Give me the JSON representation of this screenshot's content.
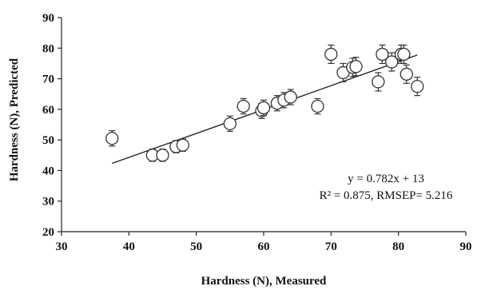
{
  "chart_data": {
    "type": "scatter",
    "title": "",
    "xlabel": "Hardness (N), Measured",
    "ylabel": "Hardness (N), Predicted",
    "xlim": [
      30,
      90
    ],
    "ylim": [
      20,
      90
    ],
    "x_ticks": [
      30,
      40,
      50,
      60,
      70,
      80,
      90
    ],
    "y_ticks": [
      20,
      30,
      40,
      50,
      60,
      70,
      80,
      90
    ],
    "grid": false,
    "legend": "none",
    "marker_color": "#ffffff",
    "marker_edge_color": "#333333",
    "series": [
      {
        "x": [
          37.5,
          43.5,
          45.0,
          47.0,
          48.0,
          55.0,
          57.0,
          59.7,
          60.0,
          62.0,
          63.0,
          64.0,
          68.0,
          70.0,
          71.8,
          73.2,
          73.7,
          77.0,
          77.6,
          79.0,
          80.4,
          80.8,
          81.2,
          82.8
        ],
        "y": [
          50.5,
          45.0,
          45.0,
          47.8,
          48.3,
          55.3,
          61.0,
          59.5,
          60.5,
          62.0,
          63.0,
          64.0,
          61.0,
          78.0,
          72.0,
          73.7,
          74.0,
          69.0,
          78.0,
          75.5,
          78.0,
          78.0,
          71.5,
          67.5
        ],
        "yerr": [
          2.5,
          2.0,
          2.0,
          2.0,
          2.0,
          2.5,
          2.5,
          2.5,
          2.5,
          2.5,
          2.5,
          2.5,
          2.5,
          3.0,
          3.0,
          3.0,
          3.0,
          3.0,
          3.0,
          3.0,
          3.0,
          3.0,
          3.0,
          3.0
        ]
      }
    ],
    "fit_line": {
      "slope": 0.782,
      "intercept": 13,
      "x_range": [
        37.5,
        82.8
      ]
    },
    "annotations": [
      "y = 0.782x + 13",
      "R² = 0.875, RMSEP= 5.216"
    ]
  }
}
